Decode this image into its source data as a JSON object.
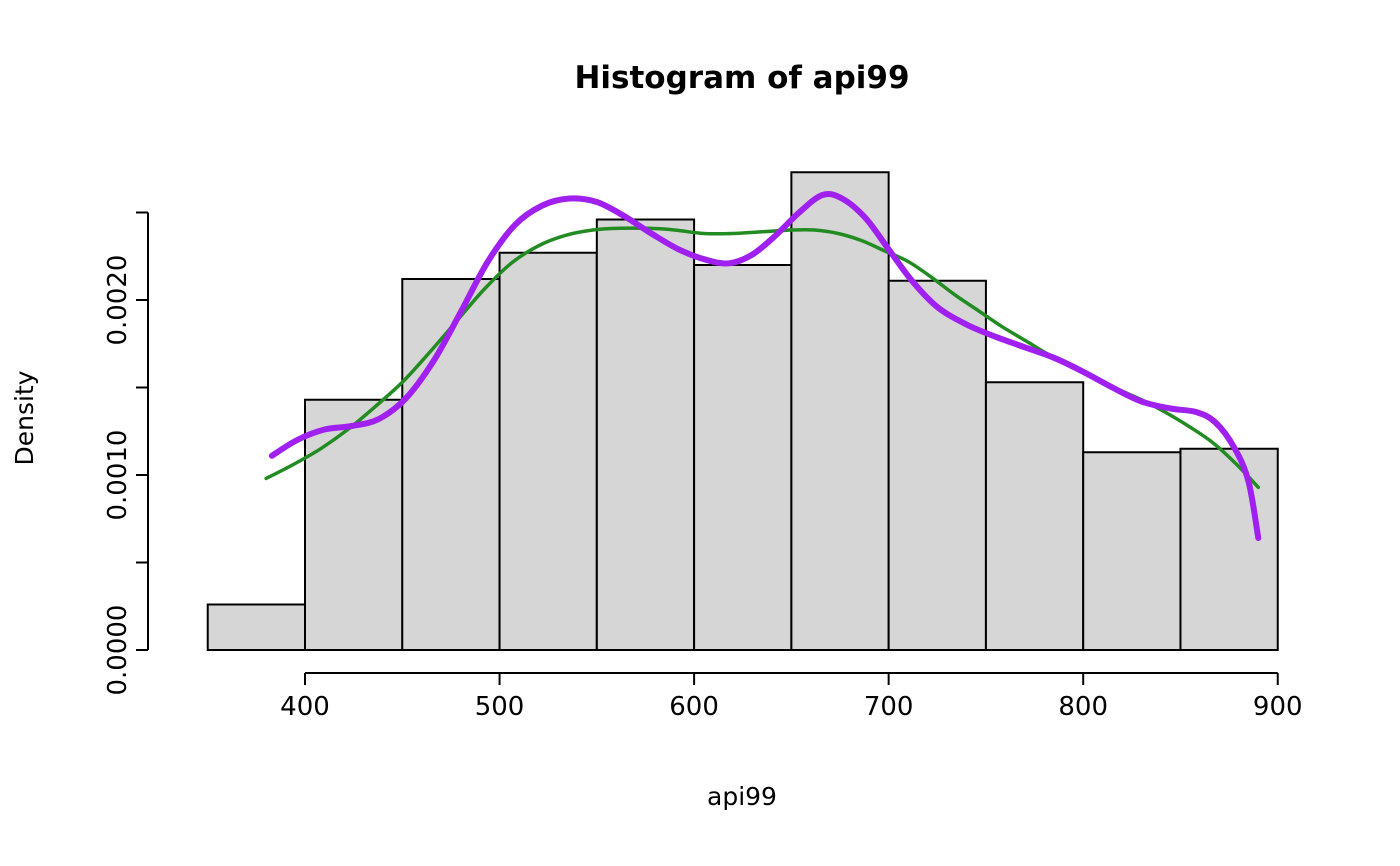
{
  "chart_data": {
    "type": "bar",
    "subtype": "histogram-with-density-curves",
    "title": "Histogram of api99",
    "xlabel": "api99",
    "ylabel": "Density",
    "xlim": [
      350,
      900
    ],
    "ylim": [
      0,
      0.0025
    ],
    "grid": false,
    "legend": "none",
    "bar_fill": "#d6d6d6",
    "bar_border": "#000000",
    "axis_color": "#000000",
    "bins": {
      "breaks": [
        350,
        400,
        450,
        500,
        550,
        600,
        650,
        700,
        750,
        800,
        850,
        900
      ],
      "densities": [
        0.00026,
        0.00143,
        0.00212,
        0.00227,
        0.00246,
        0.0022,
        0.00273,
        0.00211,
        0.00153,
        0.00113,
        0.00115
      ]
    },
    "x_ticks": [
      {
        "value": 400,
        "label": "400"
      },
      {
        "value": 500,
        "label": "500"
      },
      {
        "value": 600,
        "label": "600"
      },
      {
        "value": 700,
        "label": "700"
      },
      {
        "value": 800,
        "label": "800"
      },
      {
        "value": 900,
        "label": "900"
      }
    ],
    "y_ticks": [
      0,
      0.0005,
      0.001,
      0.0015,
      0.002,
      0.0025
    ],
    "y_tick_labels": [
      {
        "value": 0,
        "label": "0.0000"
      },
      {
        "value": 0.001,
        "label": "0.0010"
      },
      {
        "value": 0.002,
        "label": "0.0020"
      }
    ],
    "curves": [
      {
        "name": "density-curve-green",
        "color": "#228B22",
        "width": 3.5,
        "points": [
          [
            380,
            0.00098
          ],
          [
            394,
            0.00106
          ],
          [
            408,
            0.00115
          ],
          [
            422,
            0.00126
          ],
          [
            436,
            0.00139
          ],
          [
            450,
            0.00153
          ],
          [
            464,
            0.0017
          ],
          [
            478,
            0.00188
          ],
          [
            492,
            0.00206
          ],
          [
            506,
            0.00221
          ],
          [
            520,
            0.00231
          ],
          [
            534,
            0.00237
          ],
          [
            548,
            0.0024
          ],
          [
            562,
            0.00241
          ],
          [
            576,
            0.00241
          ],
          [
            590,
            0.0024
          ],
          [
            605,
            0.00238
          ],
          [
            620,
            0.00238
          ],
          [
            635,
            0.00239
          ],
          [
            650,
            0.0024
          ],
          [
            662,
            0.0024
          ],
          [
            674,
            0.00238
          ],
          [
            686,
            0.00234
          ],
          [
            698,
            0.00228
          ],
          [
            710,
            0.00222
          ],
          [
            722,
            0.00213
          ],
          [
            734,
            0.00203
          ],
          [
            746,
            0.00194
          ],
          [
            758,
            0.00185
          ],
          [
            770,
            0.00177
          ],
          [
            782,
            0.00169
          ],
          [
            794,
            0.00162
          ],
          [
            806,
            0.00156
          ],
          [
            818,
            0.00149
          ],
          [
            830,
            0.00143
          ],
          [
            842,
            0.00136
          ],
          [
            854,
            0.00128
          ],
          [
            866,
            0.00119
          ],
          [
            878,
            0.00107
          ],
          [
            890,
            0.00093
          ]
        ]
      },
      {
        "name": "density-curve-purple",
        "color": "#A020F0",
        "width": 6,
        "points": [
          [
            383,
            0.00111
          ],
          [
            396,
            0.0012
          ],
          [
            410,
            0.00126
          ],
          [
            424,
            0.00128
          ],
          [
            438,
            0.00132
          ],
          [
            452,
            0.00144
          ],
          [
            466,
            0.00165
          ],
          [
            480,
            0.00193
          ],
          [
            494,
            0.00222
          ],
          [
            508,
            0.00243
          ],
          [
            522,
            0.00254
          ],
          [
            536,
            0.00258
          ],
          [
            550,
            0.00256
          ],
          [
            564,
            0.00248
          ],
          [
            578,
            0.00238
          ],
          [
            592,
            0.00229
          ],
          [
            606,
            0.00223
          ],
          [
            618,
            0.00221
          ],
          [
            630,
            0.00226
          ],
          [
            642,
            0.00237
          ],
          [
            654,
            0.0025
          ],
          [
            666,
            0.0026
          ],
          [
            676,
            0.00258
          ],
          [
            688,
            0.00247
          ],
          [
            700,
            0.00229
          ],
          [
            712,
            0.00211
          ],
          [
            725,
            0.00196
          ],
          [
            740,
            0.00186
          ],
          [
            755,
            0.00179
          ],
          [
            770,
            0.00173
          ],
          [
            785,
            0.00167
          ],
          [
            800,
            0.00159
          ],
          [
            815,
            0.0015
          ],
          [
            830,
            0.00142
          ],
          [
            845,
            0.00138
          ],
          [
            858,
            0.00136
          ],
          [
            868,
            0.0013
          ],
          [
            878,
            0.00115
          ],
          [
            885,
            0.00096
          ],
          [
            890,
            0.00064
          ]
        ]
      }
    ]
  }
}
